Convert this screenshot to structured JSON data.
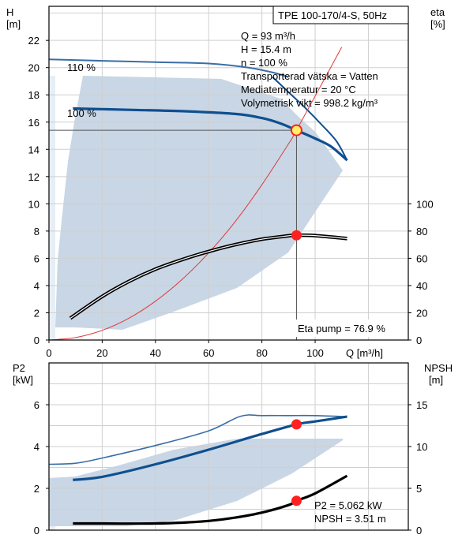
{
  "colors": {
    "curve": "#0f4f8f",
    "curve_thin": "#3a6ea5",
    "band": "#c8d6e5",
    "band_light": "#e6eef6",
    "grid": "#cfcfcf",
    "efficiency": "#000000",
    "system_curve": "#e03a3a",
    "marker": "#ff2020",
    "duty_marker_fill": "#fff066"
  },
  "chart_data": [
    {
      "type": "line",
      "title": "TPE 100-170/4-S, 50Hz",
      "xlabel": "Q [m³/h]",
      "ylabel_left": "H\n[m]",
      "ylabel_right": "eta\n[%]",
      "xlim": [
        0,
        135
      ],
      "ylim_left": [
        0,
        24.5
      ],
      "ylim_right": [
        0,
        245
      ],
      "x_ticks": [
        0,
        20,
        40,
        60,
        80,
        100
      ],
      "y_ticks_left": [
        0,
        2,
        4,
        6,
        8,
        10,
        12,
        14,
        16,
        18,
        20,
        22
      ],
      "y_ticks_right": [
        0,
        20,
        40,
        60,
        80,
        100
      ],
      "grid": true,
      "info_lines": [
        "Q = 93 m³/h",
        "H = 15.4 m",
        "n = 100 %",
        "Transporterad vätska = Vatten",
        "Mediatemperatur = 20 °C",
        "Volymetrisk vikt = 998.2 kg/m³"
      ],
      "eta_label": "Eta pump = 76.9 %",
      "series": [
        {
          "name": "110 %",
          "axis": "left",
          "x": [
            0,
            20,
            40,
            60,
            75,
            85,
            90
          ],
          "y": [
            20.6,
            20.5,
            20.4,
            20.3,
            20.0,
            19.6,
            19.3
          ]
        },
        {
          "name": "100 %",
          "axis": "left",
          "x": [
            9,
            30,
            50,
            70,
            80,
            87,
            93,
            100,
            106,
            112
          ],
          "y": [
            17.0,
            16.9,
            16.8,
            16.6,
            16.3,
            15.9,
            15.4,
            14.8,
            14.2,
            13.2
          ]
        },
        {
          "axis": "left",
          "x": [
            84,
            90,
            96,
            102,
            108,
            112
          ],
          "y": [
            19.3,
            18.2,
            17.1,
            15.9,
            14.6,
            13.2
          ]
        },
        {
          "axis": "right",
          "x": [
            8,
            20,
            30,
            40,
            50,
            60,
            70,
            80,
            90,
            93,
            100,
            112
          ],
          "y": [
            16,
            32,
            43,
            52,
            59,
            65,
            70,
            74,
            76.5,
            76.9,
            76.7,
            74.5
          ]
        },
        {
          "axis": "left",
          "x": [
            0,
            10,
            20,
            30,
            40,
            50,
            60,
            70,
            80,
            90,
            93,
            110
          ],
          "y": [
            0,
            0.18,
            0.71,
            1.6,
            2.85,
            4.45,
            6.4,
            8.7,
            11.4,
            14.4,
            15.4,
            21.5
          ]
        }
      ],
      "operating_points": [
        {
          "x": 93,
          "y": 15.4,
          "axis": "left"
        },
        {
          "x": 93,
          "y": 76.9,
          "axis": "right"
        }
      ]
    },
    {
      "type": "line",
      "xlabel": "",
      "ylabel_left": "P2\n[kW]",
      "ylabel_right": "NPSH\n[m]",
      "xlim": [
        0,
        135
      ],
      "ylim_left": [
        0,
        8
      ],
      "ylim_right": [
        0,
        20
      ],
      "y_ticks_left": [
        0,
        2,
        4,
        6
      ],
      "y_ticks_right": [
        0,
        5,
        10,
        15
      ],
      "grid": true,
      "info_lines": [
        "P2 = 5.062 kW",
        "NPSH = 3.51 m"
      ],
      "series": [
        {
          "axis": "left",
          "x": [
            0,
            10,
            20,
            40,
            60,
            72,
            80,
            90,
            100,
            112
          ],
          "y": [
            3.15,
            3.2,
            3.45,
            4.05,
            4.75,
            5.45,
            5.48,
            5.48,
            5.48,
            5.43
          ]
        },
        {
          "axis": "left",
          "x": [
            9,
            20,
            40,
            60,
            80,
            93,
            100,
            112
          ],
          "y": [
            2.4,
            2.55,
            3.15,
            3.85,
            4.6,
            5.06,
            5.2,
            5.43
          ]
        },
        {
          "axis": "right",
          "x": [
            9,
            20,
            30,
            40,
            50,
            60,
            70,
            80,
            90,
            93,
            100,
            112
          ],
          "y": [
            0.8,
            0.8,
            0.78,
            0.8,
            0.9,
            1.1,
            1.5,
            2.1,
            3.0,
            3.51,
            4.4,
            6.5
          ]
        }
      ],
      "operating_points": [
        {
          "x": 93,
          "y": 5.062,
          "axis": "left"
        },
        {
          "x": 93,
          "y": 3.51,
          "axis": "right"
        }
      ]
    }
  ]
}
